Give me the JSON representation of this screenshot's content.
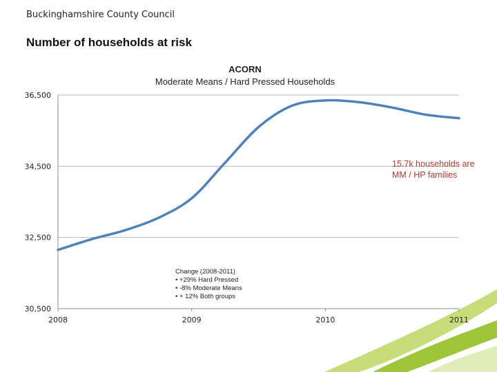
{
  "header": {
    "organization": "Buckinghamshire County Council",
    "page_title": "Number of households at risk"
  },
  "callout": {
    "line1": "15.7k households are",
    "line2": "MM / HP families",
    "color": "#c0392b"
  },
  "note": {
    "title": "Change (2008-2011)",
    "items": [
      "• +29% Hard Pressed",
      "• -8% Moderate Means",
      "• + 12% Both groups"
    ]
  },
  "chart_data": {
    "type": "line",
    "title": "ACORN",
    "subtitle": "Moderate Means / Hard Pressed  Households",
    "xlabel": "",
    "ylabel": "",
    "x": [
      2008,
      2008.25,
      2008.5,
      2008.75,
      2009,
      2009.25,
      2009.5,
      2009.75,
      2010,
      2010.25,
      2010.5,
      2010.75,
      2011
    ],
    "x_tick_labels": [
      "2008",
      "2009",
      "2010",
      "2011"
    ],
    "y_tick_labels": [
      "36,500",
      "34,500",
      "32,500",
      "30,500"
    ],
    "y_ticks": [
      36500,
      34500,
      32500,
      30500
    ],
    "ylim": [
      30500,
      36500
    ],
    "grid": true,
    "series": [
      {
        "name": "Moderate Means / Hard Pressed Households",
        "color": "#4f81bd",
        "values": [
          32150,
          32450,
          32700,
          33050,
          33600,
          34600,
          35600,
          36200,
          36350,
          36300,
          36150,
          35950,
          35850
        ]
      }
    ]
  }
}
